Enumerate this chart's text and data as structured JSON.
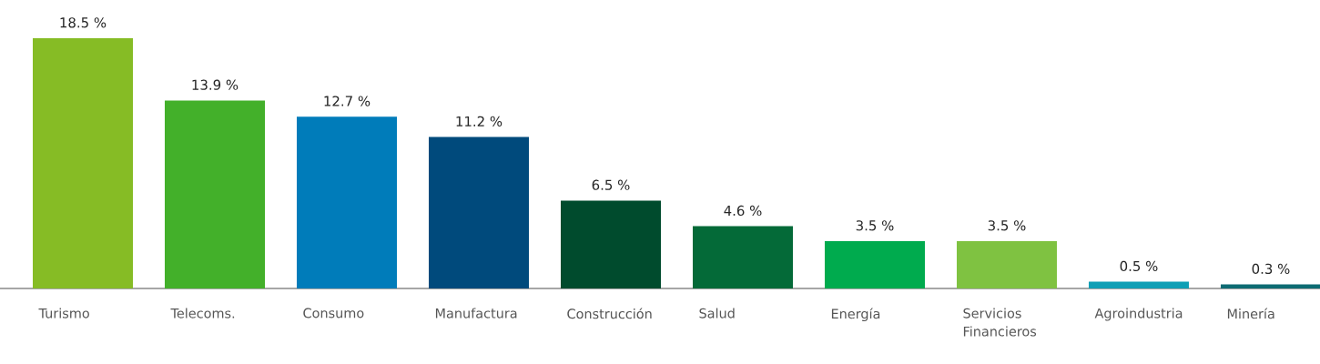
{
  "chart_data": {
    "type": "bar",
    "categories": [
      "Turismo",
      "Telecoms.",
      "Consumo",
      "Manufactura",
      "Construcción",
      "Salud",
      "Energía",
      "Servicios Financieros",
      "Agroindustria",
      "Minería"
    ],
    "values": [
      18.5,
      13.9,
      12.7,
      11.2,
      6.5,
      4.6,
      3.5,
      3.5,
      0.5,
      0.3
    ],
    "value_labels": [
      "18.5 %",
      "13.9 %",
      "12.7 %",
      "11.2 %",
      "6.5 %",
      "4.6 %",
      "3.5 %",
      "3.5 %",
      "0.5 %",
      "0.3 %"
    ],
    "colors": [
      "#86bc25",
      "#43b02a",
      "#007cba",
      "#004a7c",
      "#004b2d",
      "#046a38",
      "#00ab4e",
      "#7fc241",
      "#0f9fb5",
      "#0d6b73"
    ]
  }
}
